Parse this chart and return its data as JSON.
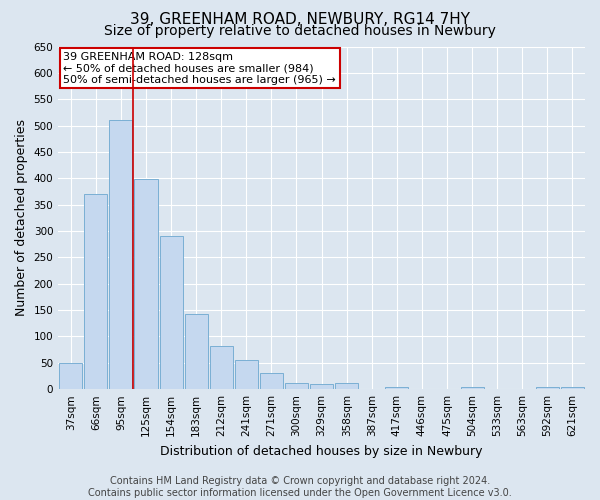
{
  "title": "39, GREENHAM ROAD, NEWBURY, RG14 7HY",
  "subtitle": "Size of property relative to detached houses in Newbury",
  "xlabel": "Distribution of detached houses by size in Newbury",
  "ylabel": "Number of detached properties",
  "footer_line1": "Contains HM Land Registry data © Crown copyright and database right 2024.",
  "footer_line2": "Contains public sector information licensed under the Open Government Licence v3.0.",
  "categories": [
    "37sqm",
    "66sqm",
    "95sqm",
    "125sqm",
    "154sqm",
    "183sqm",
    "212sqm",
    "241sqm",
    "271sqm",
    "300sqm",
    "329sqm",
    "358sqm",
    "387sqm",
    "417sqm",
    "446sqm",
    "475sqm",
    "504sqm",
    "533sqm",
    "563sqm",
    "592sqm",
    "621sqm"
  ],
  "values": [
    50,
    370,
    510,
    398,
    290,
    143,
    82,
    55,
    30,
    11,
    10,
    12,
    0,
    5,
    0,
    0,
    5,
    0,
    0,
    5,
    5
  ],
  "bar_color": "#c5d8ef",
  "bar_edge_color": "#7aafd4",
  "vertical_line_x": 2.5,
  "vertical_line_color": "#cc0000",
  "annotation_text_line1": "39 GREENHAM ROAD: 128sqm",
  "annotation_text_line2": "← 50% of detached houses are smaller (984)",
  "annotation_text_line3": "50% of semi-detached houses are larger (965) →",
  "annotation_box_facecolor": "#ffffff",
  "annotation_box_edgecolor": "#cc0000",
  "ylim": [
    0,
    650
  ],
  "yticks": [
    0,
    50,
    100,
    150,
    200,
    250,
    300,
    350,
    400,
    450,
    500,
    550,
    600,
    650
  ],
  "bg_color": "#dce6f0",
  "plot_bg_color": "#dce6f0",
  "grid_color": "#ffffff",
  "title_fontsize": 11,
  "subtitle_fontsize": 10,
  "axis_label_fontsize": 9,
  "tick_fontsize": 7.5,
  "annotation_fontsize": 8,
  "footer_fontsize": 7
}
